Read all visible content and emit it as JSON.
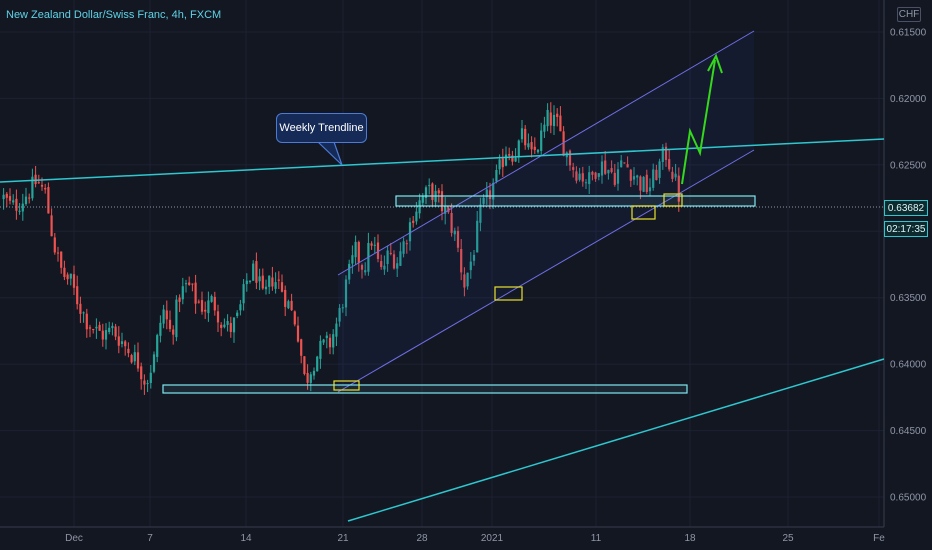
{
  "header": {
    "symbol_title": "New Zealand Dollar/Swiss Franc, 4h, FXCM",
    "currency_label": "CHF"
  },
  "price_axis": {
    "ticks": [
      "0.65000",
      "0.64500",
      "0.64000",
      "0.63500",
      "0.63000",
      "0.62500",
      "0.62000",
      "0.61500"
    ],
    "current_price": "0.63682",
    "countdown": "02:17:35"
  },
  "time_axis": {
    "labels": [
      "Dec",
      "7",
      "14",
      "21",
      "28",
      "2021",
      "11",
      "18",
      "25",
      "Fe"
    ]
  },
  "annotations": {
    "weekly_trendline_label": "Weekly Trendline"
  },
  "colors": {
    "background": "#131722",
    "up_candle": "#26a69a",
    "down_candle": "#ef5350",
    "trendline": "#2ec7cf",
    "channel": "#6f6fe8",
    "zone": "#7ee8f0",
    "marker": "#e8e030",
    "arrow": "#34d81c"
  },
  "chart_data": {
    "type": "candlestick",
    "title": "New Zealand Dollar/Swiss Franc, 4h, FXCM",
    "ylim": [
      0.6125,
      0.6515
    ],
    "y_ticks": [
      0.615,
      0.62,
      0.625,
      0.63,
      0.635,
      0.64,
      0.645,
      0.65
    ],
    "x_labels": [
      "Dec",
      "7",
      "14",
      "21",
      "28",
      "2021",
      "11",
      "18",
      "25",
      "Fe"
    ],
    "close_path": [
      0.6375,
      0.6368,
      0.6372,
      0.638,
      0.6388,
      0.6378,
      0.634,
      0.6318,
      0.6312,
      0.6295,
      0.6282,
      0.6275,
      0.6272,
      0.6276,
      0.6268,
      0.626,
      0.6252,
      0.6236,
      0.6255,
      0.6292,
      0.6272,
      0.6302,
      0.631,
      0.6298,
      0.6292,
      0.6298,
      0.6282,
      0.6276,
      0.6285,
      0.6312,
      0.6322,
      0.6298,
      0.6315,
      0.631,
      0.6295,
      0.628,
      0.6236,
      0.6252,
      0.6263,
      0.6266,
      0.6285,
      0.6312,
      0.6335,
      0.6322,
      0.6345,
      0.6318,
      0.6333,
      0.6328,
      0.6345,
      0.6365,
      0.6375,
      0.6381,
      0.6372,
      0.6362,
      0.6345,
      0.631,
      0.6332,
      0.6365,
      0.6378,
      0.6392,
      0.6412,
      0.6408,
      0.6422,
      0.6405,
      0.6418,
      0.6435,
      0.6432,
      0.6412,
      0.6398,
      0.6392,
      0.6388,
      0.6401,
      0.6398,
      0.6392,
      0.6402,
      0.6395,
      0.6386,
      0.6382,
      0.6395,
      0.641,
      0.6392,
      0.6368
    ],
    "current_price": 0.63682,
    "annotations": [
      {
        "kind": "trendline",
        "label": "Weekly Trendline"
      },
      {
        "kind": "ascending-channel"
      },
      {
        "kind": "support-zone",
        "range": [
          0.6365,
          0.6374
        ]
      },
      {
        "kind": "support-zone",
        "range": [
          0.6229,
          0.6236
        ]
      },
      {
        "kind": "projection-arrow",
        "path": [
          0.6386,
          0.6422,
          0.6408,
          0.6478
        ]
      }
    ]
  }
}
